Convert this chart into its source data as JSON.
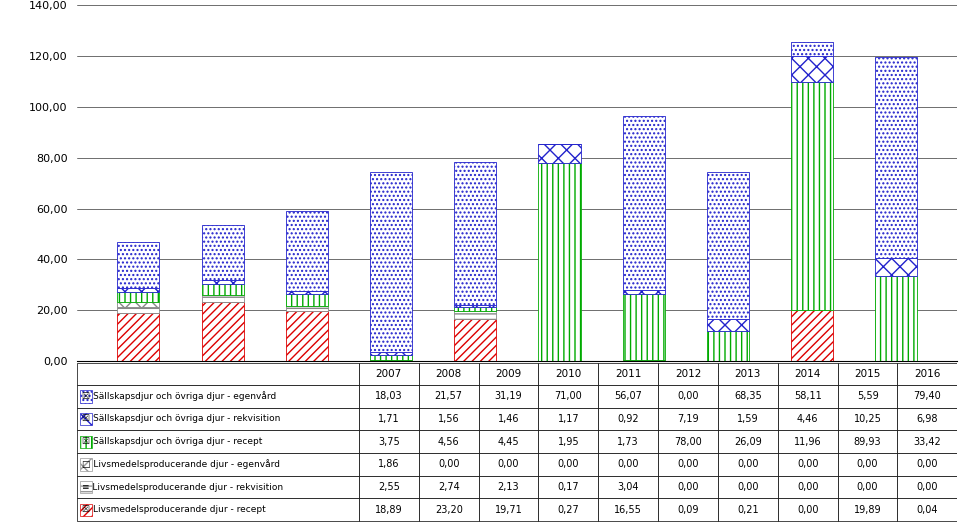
{
  "years": [
    "2007",
    "2008",
    "2009",
    "2010",
    "2011",
    "2012",
    "2013",
    "2014",
    "2015",
    "2016"
  ],
  "series": [
    {
      "label": "Sällskapsdjur och övriga djur - egenvård",
      "values": [
        18.03,
        21.57,
        31.19,
        71.0,
        56.07,
        0.0,
        68.35,
        58.11,
        5.59,
        79.4
      ],
      "facecolor": "white",
      "hatch": "....",
      "edgecolor": "#2222cc",
      "legend_icon": "dots_blue"
    },
    {
      "label": "Sällskapsdjur och övriga djur - rekvisition",
      "values": [
        1.71,
        1.56,
        1.46,
        1.17,
        0.92,
        7.19,
        1.59,
        4.46,
        10.25,
        6.98
      ],
      "facecolor": "white",
      "hatch": "xx",
      "edgecolor": "#2222cc",
      "legend_icon": "xx_blue"
    },
    {
      "label": "Sällskapsdjur och övriga djur - recept",
      "values": [
        3.75,
        4.56,
        4.45,
        1.95,
        1.73,
        78.0,
        26.09,
        11.96,
        89.93,
        33.42
      ],
      "facecolor": "white",
      "hatch": "|||",
      "edgecolor": "#00aa00",
      "legend_icon": "vert_green"
    },
    {
      "label": "Livsmedelsproducerande djur - egenvård",
      "values": [
        1.86,
        0.0,
        0.0,
        0.0,
        0.0,
        0.0,
        0.0,
        0.0,
        0.0,
        0.0
      ],
      "facecolor": "white",
      "hatch": "xx",
      "edgecolor": "#888888",
      "legend_icon": "xx_gray"
    },
    {
      "label": "Livsmedelsproducerande djur - rekvisition",
      "values": [
        2.55,
        2.74,
        2.13,
        0.17,
        3.04,
        0.0,
        0.0,
        0.0,
        0.0,
        0.0
      ],
      "facecolor": "white",
      "hatch": "---",
      "edgecolor": "#888888",
      "legend_icon": "horiz_gray"
    },
    {
      "label": "Livsmedelsproducerande djur - recept",
      "values": [
        18.89,
        23.2,
        19.71,
        0.27,
        16.55,
        0.09,
        0.21,
        0.0,
        19.89,
        0.04
      ],
      "facecolor": "white",
      "hatch": "////",
      "edgecolor": "#dd0000",
      "legend_icon": "diag_red"
    }
  ],
  "stack_order": [
    5,
    4,
    3,
    2,
    1,
    0
  ],
  "ylim": [
    0,
    140
  ],
  "yticks": [
    0,
    20,
    40,
    60,
    80,
    100,
    120,
    140
  ],
  "bar_width": 0.5,
  "fig_width": 9.67,
  "fig_height": 5.28,
  "dpi": 100
}
